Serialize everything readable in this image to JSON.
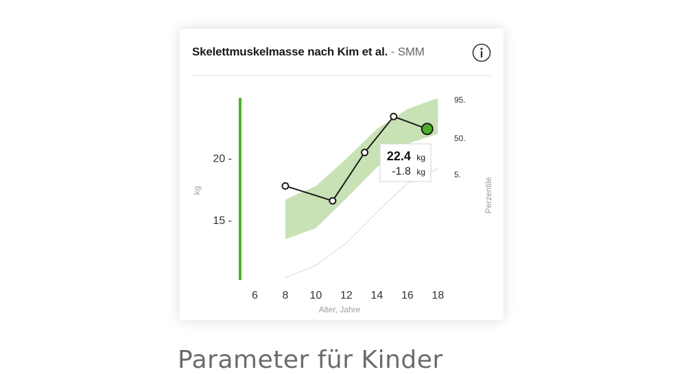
{
  "card": {
    "title_main": "Skelettmuskelmasse nach Kim et al.",
    "title_separator": " - ",
    "title_sub": "SMM",
    "info_icon": "info-icon",
    "accent_color": "#4caf2a",
    "band_color": "#c8e2b5"
  },
  "caption": "Parameter für Kinder",
  "chart_data": {
    "type": "line",
    "xlabel": "Alter, Jahre",
    "ylabel": "kg",
    "right_label": "Perzentile",
    "x_ticks": [
      "6",
      "8",
      "10",
      "12",
      "14",
      "16",
      "18"
    ],
    "y_ticks": [
      "15 -",
      "20 -"
    ],
    "percentile_ticks": [
      "95.",
      "50.",
      "5."
    ],
    "xlim": [
      4.9,
      18.3
    ],
    "ylim": [
      10.2,
      24.9
    ],
    "grid": false,
    "series": [
      {
        "x": [
          8,
          11.1,
          13.2,
          15.1,
          17.3
        ],
        "y": [
          17.8,
          16.6,
          20.5,
          23.4,
          22.4
        ]
      }
    ],
    "percentile_band": {
      "x": [
        8,
        10,
        12,
        14,
        16,
        18
      ],
      "upper": [
        16.7,
        17.8,
        20.0,
        22.4,
        24.0,
        24.9
      ],
      "lower": [
        13.5,
        14.4,
        16.8,
        19.3,
        21.2,
        22.0
      ]
    },
    "percentile_5_line": {
      "x": [
        8,
        10,
        12,
        14,
        16,
        18
      ],
      "y": [
        10.4,
        11.4,
        13.2,
        15.7,
        18.0,
        19.2
      ]
    },
    "tooltip": {
      "value": "22.4",
      "value_unit": "kg",
      "delta": "-1.8",
      "delta_unit": "kg"
    }
  }
}
